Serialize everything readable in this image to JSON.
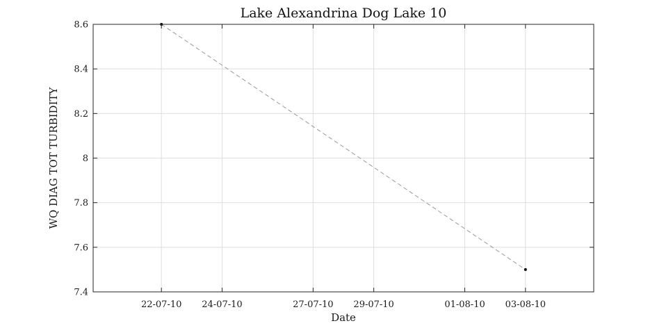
{
  "chart_data": {
    "type": "line",
    "title": "Lake Alexandrina Dog Lake 10",
    "xlabel": "Date",
    "ylabel": "WQ DIAG TOT TURBIDITY",
    "x_ticks": [
      {
        "date": "2010-07-22",
        "label": "22-07-10"
      },
      {
        "date": "2010-07-24",
        "label": "24-07-10"
      },
      {
        "date": "2010-07-27",
        "label": "27-07-10"
      },
      {
        "date": "2010-07-29",
        "label": "29-07-10"
      },
      {
        "date": "2010-08-01",
        "label": "01-08-10"
      },
      {
        "date": "2010-08-03",
        "label": "03-08-10"
      }
    ],
    "y_ticks": [
      {
        "value": 7.4,
        "label": "7.4"
      },
      {
        "value": 7.6,
        "label": "7.6"
      },
      {
        "value": 7.8,
        "label": "7.8"
      },
      {
        "value": 8.0,
        "label": "8"
      },
      {
        "value": 8.2,
        "label": "8.2"
      },
      {
        "value": 8.4,
        "label": "8.4"
      },
      {
        "value": 8.6,
        "label": "8.6"
      }
    ],
    "xlim": [
      "2010-07-19T18:00",
      "2010-08-05T06:00"
    ],
    "ylim": [
      7.4,
      8.6
    ],
    "grid": true,
    "series": [
      {
        "points": [
          {
            "date": "2010-07-22",
            "value": 8.6
          },
          {
            "date": "2010-08-03",
            "value": 7.5
          }
        ],
        "line_color": "#999999",
        "line_style": "dashed",
        "marker_color": "#000000"
      }
    ]
  }
}
